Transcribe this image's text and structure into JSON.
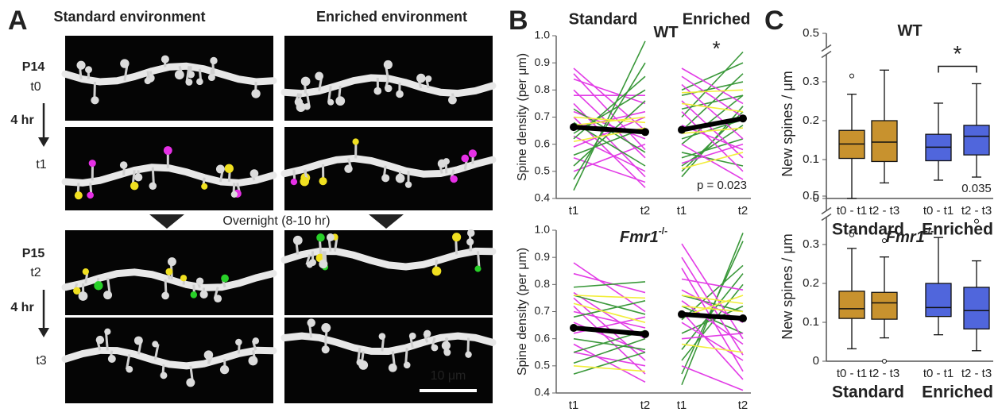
{
  "panel_a": {
    "label": "A",
    "columns": [
      "Standard environment",
      "Enriched environment"
    ],
    "column_colors": [
      "#c08c2c",
      "#5464dc"
    ],
    "day1": {
      "age": "P14",
      "times": [
        "t0",
        "t1"
      ],
      "interval": "4 hr"
    },
    "overnight": "Overnight (8-10 hr)",
    "day2": {
      "age": "P15",
      "times": [
        "t2",
        "t3"
      ],
      "interval": "4 hr"
    },
    "scale_bar": "10 μm"
  },
  "chart_data": [
    {
      "type": "slope",
      "panel": "B",
      "title": "WT",
      "title_color": "#000000",
      "ylabel": "Spine density (per μm)",
      "ylim": [
        0.4,
        1
      ],
      "yticks": [
        0.4,
        0.5,
        0.6,
        0.7,
        0.8,
        0.9,
        {
          "value": 1,
          "label": "1.0"
        }
      ],
      "annotation": "p = 0.023",
      "groups": [
        {
          "label": "Standard",
          "label_color": "#c08c2c",
          "x": [
            "t1",
            "t2"
          ],
          "sets": [
            {
              "color": "#e23ce6",
              "pairs": [
                [
                  0.88,
                  0.65
                ],
                [
                  0.86,
                  0.58
                ],
                [
                  0.84,
                  0.75
                ],
                [
                  0.8,
                  0.55
                ],
                [
                  0.78,
                  0.78
                ],
                [
                  0.75,
                  0.48
                ],
                [
                  0.72,
                  0.62
                ],
                [
                  0.7,
                  0.44
                ],
                [
                  0.66,
                  0.72
                ],
                [
                  0.63,
                  0.5
                ],
                [
                  0.59,
                  0.7
                ],
                [
                  0.55,
                  0.46
                ],
                [
                  0.5,
                  0.6
                ]
              ]
            },
            {
              "color": "#3a983a",
              "pairs": [
                [
                  0.43,
                  0.98
                ],
                [
                  0.47,
                  0.9
                ],
                [
                  0.52,
                  0.76
                ],
                [
                  0.56,
                  0.66
                ],
                [
                  0.62,
                  0.85
                ],
                [
                  0.68,
                  0.52
                ],
                [
                  0.73,
                  0.57
                ],
                [
                  0.64,
                  0.8
                ]
              ]
            },
            {
              "color": "#f2ee3a",
              "pairs": [
                [
                  0.7,
                  0.68
                ],
                [
                  0.67,
                  0.7
                ],
                [
                  0.61,
                  0.66
                ]
              ]
            }
          ],
          "mean": [
            0.663,
            0.645
          ]
        },
        {
          "label": "Enriched",
          "label_color": "#5464dc",
          "x": [
            "t1",
            "t2"
          ],
          "significance": "*",
          "sets": [
            {
              "color": "#3a983a",
              "pairs": [
                [
                  0.48,
                  0.74
                ],
                [
                  0.5,
                  0.72
                ],
                [
                  0.52,
                  0.67
                ],
                [
                  0.55,
                  0.62
                ],
                [
                  0.6,
                  0.78
                ],
                [
                  0.65,
                  0.86
                ],
                [
                  0.7,
                  0.94
                ],
                [
                  0.73,
                  0.78
                ],
                [
                  0.78,
                  0.83
                ],
                [
                  0.8,
                  0.9
                ],
                [
                  0.57,
                  0.52
                ],
                [
                  0.62,
                  0.69
                ]
              ]
            },
            {
              "color": "#e23ce6",
              "pairs": [
                [
                  0.85,
                  0.7
                ],
                [
                  0.82,
                  0.62
                ],
                [
                  0.76,
                  0.55
                ],
                [
                  0.72,
                  0.5
                ],
                [
                  0.67,
                  0.58
                ],
                [
                  0.6,
                  0.47
                ],
                [
                  0.53,
                  0.6
                ],
                [
                  0.88,
                  0.75
                ]
              ]
            },
            {
              "color": "#f2ee3a",
              "pairs": [
                [
                  0.79,
                  0.8
                ],
                [
                  0.75,
                  0.72
                ],
                [
                  0.64,
                  0.66
                ],
                [
                  0.51,
                  0.57
                ]
              ]
            }
          ],
          "mean": [
            0.653,
            0.695
          ]
        }
      ]
    },
    {
      "type": "slope",
      "title": "Fmr1",
      "title_superscript": "-/-",
      "title_color": "#e8191e",
      "ylabel": "Spine density (per μm)",
      "ylim": [
        0.4,
        1
      ],
      "yticks": [
        0.4,
        0.5,
        0.6,
        0.7,
        0.8,
        0.9,
        {
          "value": 1,
          "label": "1.0"
        }
      ],
      "groups": [
        {
          "x": [
            "t1",
            "t2"
          ],
          "sets": [
            {
              "color": "#e23ce6",
              "pairs": [
                [
                  0.88,
                  0.7
                ],
                [
                  0.84,
                  0.77
                ],
                [
                  0.77,
                  0.6
                ],
                [
                  0.75,
                  0.52
                ],
                [
                  0.72,
                  0.47
                ],
                [
                  0.7,
                  0.64
                ],
                [
                  0.66,
                  0.55
                ],
                [
                  0.62,
                  0.68
                ],
                [
                  0.58,
                  0.44
                ],
                [
                  0.55,
                  0.5
                ]
              ]
            },
            {
              "color": "#3a983a",
              "pairs": [
                [
                  0.79,
                  0.81
                ],
                [
                  0.76,
                  0.69
                ],
                [
                  0.68,
                  0.74
                ],
                [
                  0.6,
                  0.56
                ],
                [
                  0.55,
                  0.63
                ],
                [
                  0.51,
                  0.6
                ],
                [
                  0.47,
                  0.55
                ]
              ]
            },
            {
              "color": "#f2ee3a",
              "pairs": [
                [
                  0.76,
                  0.75
                ],
                [
                  0.73,
                  0.66
                ],
                [
                  0.5,
                  0.48
                ]
              ]
            }
          ],
          "mean": [
            0.64,
            0.617
          ]
        },
        {
          "x": [
            "t1",
            "t2"
          ],
          "sets": [
            {
              "color": "#3a983a",
              "pairs": [
                [
                  0.43,
                  0.99
                ],
                [
                  0.47,
                  0.96
                ],
                [
                  0.52,
                  0.8
                ],
                [
                  0.56,
                  0.84
                ],
                [
                  0.62,
                  0.72
                ],
                [
                  0.67,
                  0.87
                ],
                [
                  0.72,
                  0.62
                ],
                [
                  0.76,
                  0.7
                ]
              ]
            },
            {
              "color": "#e23ce6",
              "pairs": [
                [
                  0.95,
                  0.6
                ],
                [
                  0.9,
                  0.54
                ],
                [
                  0.86,
                  0.48
                ],
                [
                  0.82,
                  0.78
                ],
                [
                  0.78,
                  0.66
                ],
                [
                  0.74,
                  0.58
                ],
                [
                  0.7,
                  0.45
                ],
                [
                  0.66,
                  0.52
                ],
                [
                  0.6,
                  0.62
                ],
                [
                  0.5,
                  0.41
                ]
              ]
            },
            {
              "color": "#f2ee3a",
              "pairs": [
                [
                  0.76,
                  0.73
                ],
                [
                  0.72,
                  0.7
                ],
                [
                  0.68,
                  0.76
                ],
                [
                  0.58,
                  0.55
                ]
              ]
            }
          ],
          "mean": [
            0.69,
            0.675
          ]
        }
      ]
    },
    {
      "type": "box",
      "panel": "C",
      "title": "WT",
      "title_color": "#000000",
      "ylabel": "New spines / μm",
      "ylim": [
        0,
        0.5
      ],
      "yticks": [
        0,
        0.1,
        0.2,
        0.3,
        0.5
      ],
      "axis_break": true,
      "groups": [
        {
          "label": "Standard",
          "color": "#c8922e",
          "boxes": [
            {
              "category": "t0 - t1",
              "whislo": 0,
              "q1": 0.103,
              "med": 0.14,
              "q3": 0.175,
              "whishi": 0.268,
              "fliers": [
                0.315
              ]
            },
            {
              "category": "t2 - t3",
              "whislo": 0.04,
              "q1": 0.095,
              "med": 0.145,
              "q3": 0.2,
              "whishi": 0.33,
              "fliers": []
            }
          ]
        },
        {
          "label": "Enriched",
          "color": "#5066dc",
          "significance": "*",
          "p_label": "0.035",
          "boxes": [
            {
              "category": "t0 - t1",
              "whislo": 0.047,
              "q1": 0.097,
              "med": 0.132,
              "q3": 0.165,
              "whishi": 0.245,
              "fliers": []
            },
            {
              "category": "t2 - t3",
              "whislo": 0.055,
              "q1": 0.112,
              "med": 0.16,
              "q3": 0.188,
              "whishi": 0.295,
              "fliers": []
            }
          ]
        }
      ]
    },
    {
      "type": "box",
      "title": "Fmr1",
      "title_superscript": "-/-",
      "title_color": "#e8191e",
      "ylabel": "New spines / μm",
      "ylim": [
        0,
        0.5
      ],
      "yticks": [
        0,
        0.1,
        0.2,
        0.3,
        0.5
      ],
      "axis_break": true,
      "groups": [
        {
          "label": "Standard",
          "color": "#c8922e",
          "boxes": [
            {
              "category": "t0 - t1",
              "whislo": 0.032,
              "q1": 0.11,
              "med": 0.135,
              "q3": 0.18,
              "whishi": 0.29,
              "fliers": [
                0.325
              ]
            },
            {
              "category": "t2 - t3",
              "whislo": 0.06,
              "q1": 0.108,
              "med": 0.15,
              "q3": 0.177,
              "whishi": 0.268,
              "fliers": [
                0.31,
                0
              ]
            }
          ]
        },
        {
          "label": "Enriched",
          "color": "#5066dc",
          "boxes": [
            {
              "category": "t0 - t1",
              "whislo": 0.068,
              "q1": 0.115,
              "med": 0.138,
              "q3": 0.2,
              "whishi": 0.318,
              "fliers": []
            },
            {
              "category": "t2 - t3",
              "whislo": 0.027,
              "q1": 0.083,
              "med": 0.13,
              "q3": 0.19,
              "whishi": 0.258,
              "fliers": [
                0.36
              ]
            }
          ]
        }
      ]
    }
  ]
}
